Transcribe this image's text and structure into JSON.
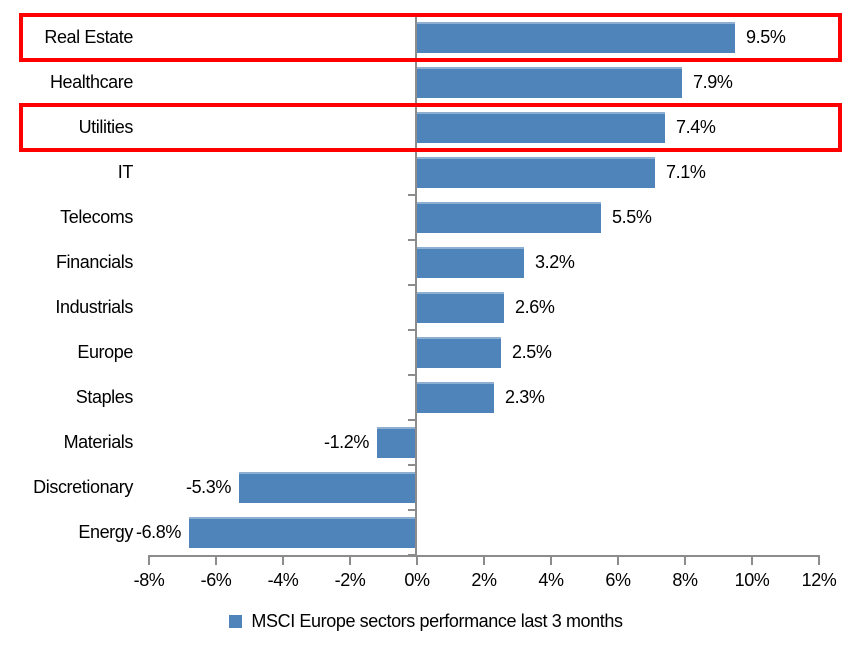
{
  "chart_data": {
    "type": "bar",
    "orientation": "horizontal",
    "categories": [
      "Real Estate",
      "Healthcare",
      "Utilities",
      "IT",
      "Telecoms",
      "Financials",
      "Industrials",
      "Europe",
      "Staples",
      "Materials",
      "Discretionary",
      "Energy"
    ],
    "values": [
      9.5,
      7.9,
      7.4,
      7.1,
      5.5,
      3.2,
      2.6,
      2.5,
      2.3,
      -1.2,
      -5.3,
      -6.8
    ],
    "data_labels": [
      "9.5%",
      "7.9%",
      "7.4%",
      "7.1%",
      "5.5%",
      "3.2%",
      "2.6%",
      "2.5%",
      "2.3%",
      "-1.2%",
      "-5.3%",
      "-6.8%"
    ],
    "xlim": [
      -8,
      12
    ],
    "x_ticks": [
      -8,
      -6,
      -4,
      -2,
      0,
      2,
      4,
      6,
      8,
      10,
      12
    ],
    "x_tick_labels": [
      "-8%",
      "-6%",
      "-4%",
      "-2%",
      "0%",
      "2%",
      "4%",
      "6%",
      "8%",
      "10%",
      "12%"
    ],
    "grid": false,
    "bar_color": "#4f84ba",
    "axis_color": "#8c8c8c",
    "legend": {
      "position": "bottom",
      "label": "MSCI Europe sectors performance last 3 months"
    },
    "annotations": {
      "highlighted_categories": [
        "Real Estate",
        "Utilities"
      ],
      "highlight_color": "#ff0000"
    }
  }
}
